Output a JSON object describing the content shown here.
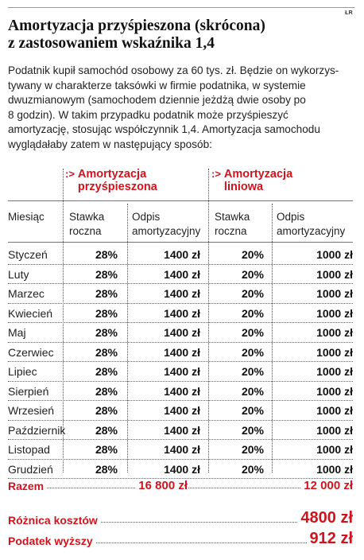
{
  "credit": "ŁR",
  "title": "Amortyzacja przyśpieszona (skrócona)\nz zastosowaniem wskaźnika 1,4",
  "intro": "Podatnik kupił samochód osobowy za 60 tys. zł. Będzie on wykorzys-\ntywany w charakterze taksówki w firmie podatnika, w systemie\ndwuzmianowym (samochodem dziennie jeżdżą dwie osoby po\n8 godzin). W takim przypadku podatnik może przyśpieszyć\namortyzację, stosując współczynnik 1,4. Amortyzacja samochodu\nwyglądałaby zatem w następujący sposób:",
  "table": {
    "group_arrow": ":>",
    "groups": [
      "Amortyzacja\nprzyśpieszona",
      "Amortyzacja\nliniowa"
    ],
    "columns": {
      "month": "Miesiąc",
      "rate_1": "Stawka\nroczna",
      "charge_1": "Odpis\namortyzacyjny",
      "rate_2": "Stawka\nroczna",
      "charge_2": "Odpis\namortyzacyjny"
    },
    "rows": [
      {
        "month": "Styczeń",
        "rate_1": "28%",
        "charge_1": "1400 zł",
        "rate_2": "20%",
        "charge_2": "1000 zł"
      },
      {
        "month": "Luty",
        "rate_1": "28%",
        "charge_1": "1400 zł",
        "rate_2": "20%",
        "charge_2": "1000 zł"
      },
      {
        "month": "Marzec",
        "rate_1": "28%",
        "charge_1": "1400 zł",
        "rate_2": "20%",
        "charge_2": "1000 zł"
      },
      {
        "month": "Kwiecień",
        "rate_1": "28%",
        "charge_1": "1400 zł",
        "rate_2": "20%",
        "charge_2": "1000 zł"
      },
      {
        "month": "Maj",
        "rate_1": "28%",
        "charge_1": "1400 zł",
        "rate_2": "20%",
        "charge_2": "1000 zł"
      },
      {
        "month": "Czerwiec",
        "rate_1": "28%",
        "charge_1": "1400 zł",
        "rate_2": "20%",
        "charge_2": "1000 zł"
      },
      {
        "month": "Lipiec",
        "rate_1": "28%",
        "charge_1": "1400 zł",
        "rate_2": "20%",
        "charge_2": "1000 zł"
      },
      {
        "month": "Sierpień",
        "rate_1": "28%",
        "charge_1": "1400 zł",
        "rate_2": "20%",
        "charge_2": "1000 zł"
      },
      {
        "month": "Wrzesień",
        "rate_1": "28%",
        "charge_1": "1400 zł",
        "rate_2": "20%",
        "charge_2": "1000 zł"
      },
      {
        "month": "Październik",
        "rate_1": "28%",
        "charge_1": "1400 zł",
        "rate_2": "20%",
        "charge_2": "1000 zł"
      },
      {
        "month": "Listopad",
        "rate_1": "28%",
        "charge_1": "1400 zł",
        "rate_2": "20%",
        "charge_2": "1000 zł"
      },
      {
        "month": "Grudzień",
        "rate_1": "28%",
        "charge_1": "1400 zł",
        "rate_2": "20%",
        "charge_2": "1000 zł"
      }
    ]
  },
  "total": {
    "label": "Razem",
    "value_1": "16 800 zł",
    "value_2": "12 000 zł"
  },
  "difference": {
    "label": "Różnica kosztów",
    "value": "4800 zł"
  },
  "tax": {
    "label": "Podatek wyższy",
    "value": "912 zł"
  },
  "colors": {
    "accent": "#d0141e",
    "text": "#1a1a1a"
  }
}
